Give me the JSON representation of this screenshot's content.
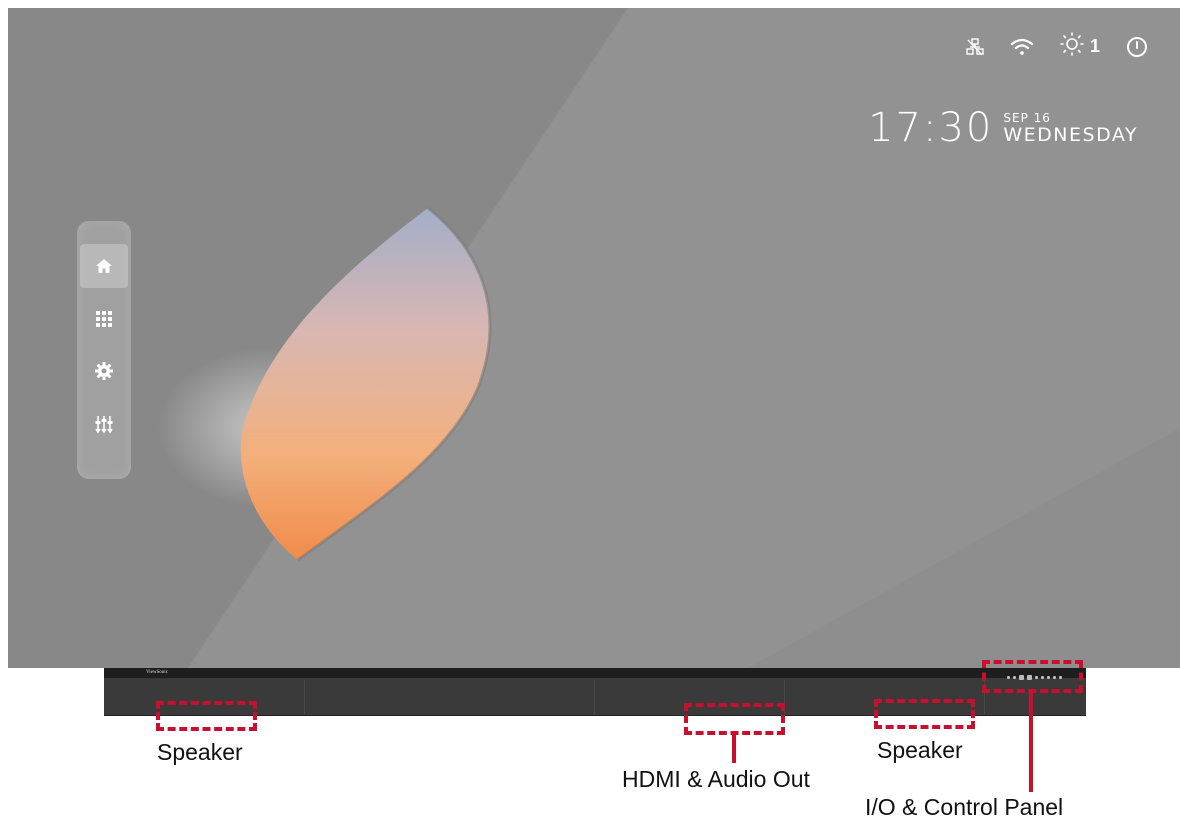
{
  "status": {
    "icons": [
      "network-disconnected-icon",
      "wifi-icon",
      "brightness-icon",
      "power-icon"
    ],
    "brightness_value": "1"
  },
  "clock": {
    "time": "17:30",
    "date": "SEP 16",
    "weekday": "WEDNESDAY"
  },
  "sidebar": {
    "items": [
      {
        "name": "home",
        "icon": "home-icon",
        "active": true
      },
      {
        "name": "apps",
        "icon": "grid-icon",
        "active": false
      },
      {
        "name": "settings",
        "icon": "gear-icon",
        "active": false
      },
      {
        "name": "tools",
        "icon": "sliders-icon",
        "active": false
      }
    ]
  },
  "bezel": {
    "brand": "ViewSonic"
  },
  "callouts": {
    "speaker_left": "Speaker",
    "hdmi_audio": "HDMI & Audio Out",
    "speaker_right": "Speaker",
    "io_panel": "I/O & Control Panel"
  },
  "colors": {
    "accent_red": "#c8102e",
    "screen_gray": "#8f8f8f",
    "bezel": "#3a3a3a"
  }
}
